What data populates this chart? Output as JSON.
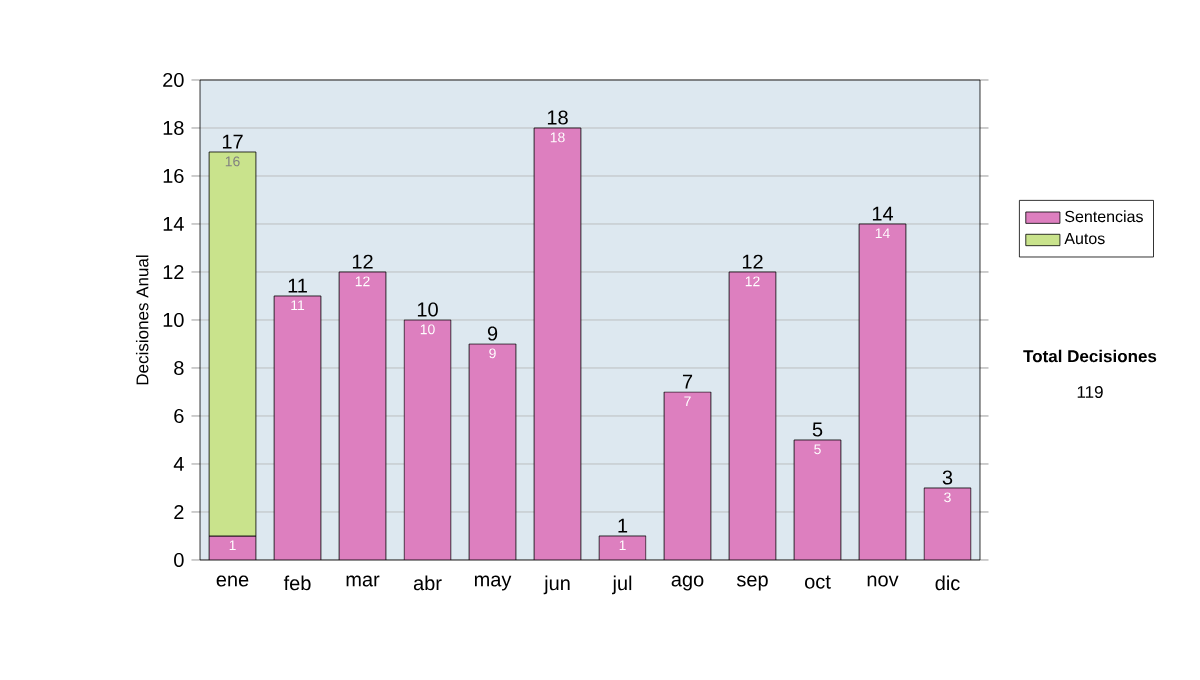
{
  "chart_data": {
    "type": "bar",
    "stacked": true,
    "categories": [
      "ene",
      "feb",
      "mar",
      "abr",
      "may",
      "jun",
      "jul",
      "ago",
      "sep",
      "oct",
      "nov",
      "dic"
    ],
    "series": [
      {
        "name": "Sentencias",
        "color": "#dd7fbf",
        "values": [
          1,
          11,
          12,
          10,
          9,
          18,
          1,
          7,
          12,
          5,
          14,
          3
        ]
      },
      {
        "name": "Autos",
        "color": "#c9e38c",
        "values": [
          16,
          null,
          null,
          null,
          null,
          null,
          null,
          null,
          null,
          null,
          null,
          null
        ]
      }
    ],
    "ylabel": "Decisiones Anual",
    "ylim": [
      0,
      20
    ],
    "yticks": [
      0,
      2,
      4,
      6,
      8,
      10,
      12,
      14,
      16,
      18,
      20
    ],
    "grid": "y",
    "legend": "right",
    "data_labels": true,
    "totals": [
      "17",
      "11",
      "12",
      "10",
      "9",
      "18",
      "1",
      "7",
      "12",
      "5",
      "14",
      "3"
    ],
    "annotations": [
      "Total Decisiones",
      "119"
    ]
  }
}
